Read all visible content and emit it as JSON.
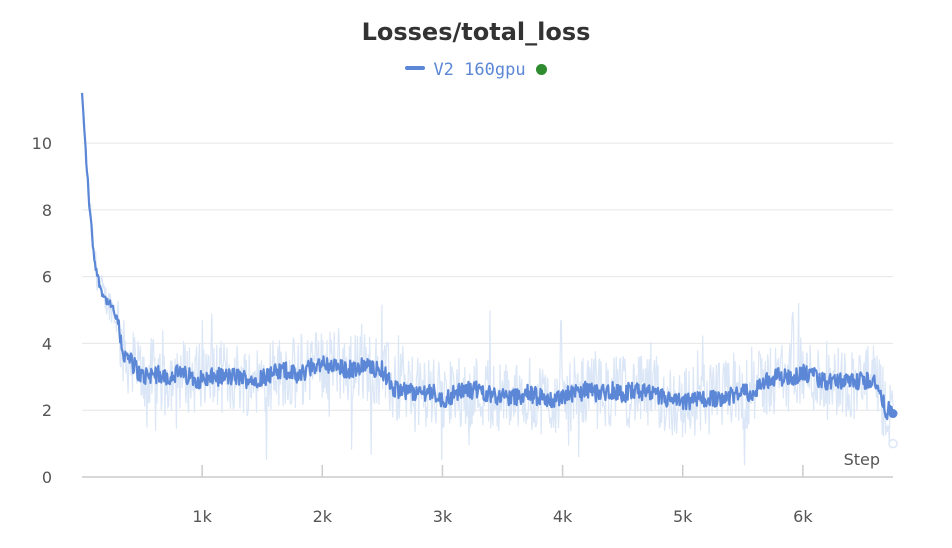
{
  "chart_data": {
    "type": "line",
    "title": "Losses/total_loss",
    "xlabel": "Step",
    "ylabel": "",
    "xlim": [
      0,
      6750
    ],
    "ylim": [
      0,
      11.5
    ],
    "x_ticks": [
      1000,
      2000,
      3000,
      4000,
      5000,
      6000
    ],
    "x_tick_labels": [
      "1k",
      "2k",
      "3k",
      "4k",
      "5k",
      "6k"
    ],
    "y_ticks": [
      0,
      2,
      4,
      6,
      8,
      10
    ],
    "y_tick_labels": [
      "0",
      "2",
      "4",
      "6",
      "8",
      "10"
    ],
    "grid": true,
    "legend_position": "top-center",
    "series": [
      {
        "name": "V2 160gpu",
        "color": "#5b87d6",
        "status_color": "#2e8b2e",
        "smoothed": {
          "x": [
            0,
            30,
            60,
            100,
            130,
            160,
            200,
            250,
            300,
            350,
            400,
            500,
            600,
            700,
            800,
            900,
            1000,
            1100,
            1200,
            1300,
            1400,
            1500,
            1600,
            1700,
            1800,
            1900,
            2000,
            2100,
            2200,
            2300,
            2400,
            2500,
            2600,
            2700,
            2800,
            2900,
            3000,
            3100,
            3200,
            3300,
            3400,
            3500,
            3600,
            3700,
            3800,
            3900,
            4000,
            4100,
            4200,
            4300,
            4400,
            4500,
            4600,
            4700,
            4800,
            4900,
            5000,
            5100,
            5200,
            5300,
            5400,
            5500,
            5600,
            5700,
            5800,
            5900,
            6000,
            6100,
            6200,
            6300,
            6400,
            6500,
            6600,
            6650,
            6700,
            6750
          ],
          "y": [
            11.5,
            9.8,
            8.2,
            6.6,
            6.0,
            5.6,
            5.3,
            5.1,
            4.6,
            3.6,
            3.5,
            3.0,
            3.1,
            3.0,
            3.1,
            3.0,
            2.9,
            3.0,
            3.0,
            3.0,
            2.9,
            3.0,
            3.1,
            3.2,
            3.0,
            3.3,
            3.4,
            3.3,
            3.2,
            3.3,
            3.3,
            3.2,
            2.6,
            2.6,
            2.5,
            2.6,
            2.3,
            2.5,
            2.6,
            2.6,
            2.5,
            2.4,
            2.4,
            2.5,
            2.4,
            2.3,
            2.4,
            2.5,
            2.6,
            2.5,
            2.6,
            2.5,
            2.6,
            2.5,
            2.4,
            2.3,
            2.2,
            2.3,
            2.3,
            2.4,
            2.4,
            2.5,
            2.6,
            2.9,
            3.0,
            3.0,
            3.1,
            3.0,
            2.8,
            2.9,
            2.8,
            2.9,
            2.9,
            2.3,
            2.0,
            1.9
          ]
        },
        "raw_end_value": 1.0
      }
    ]
  }
}
